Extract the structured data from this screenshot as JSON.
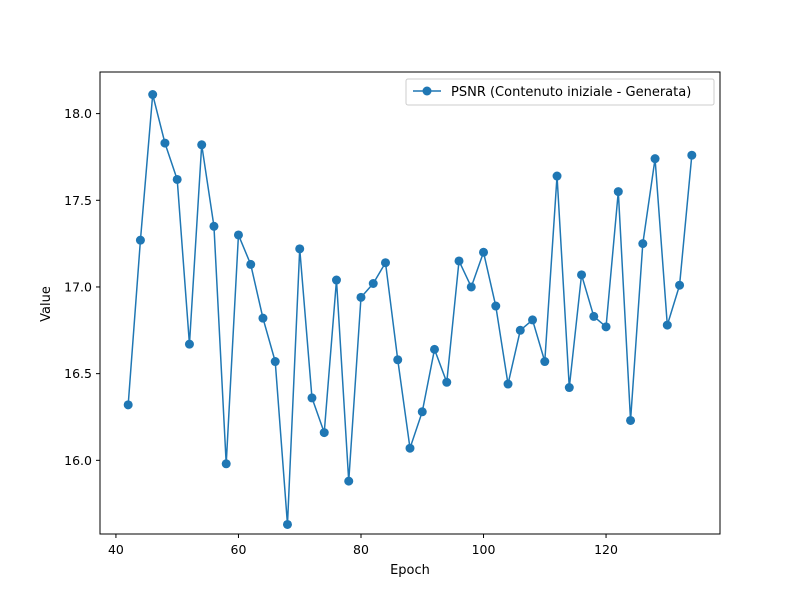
{
  "chart_data": {
    "type": "line",
    "xlabel": "Epoch",
    "ylabel": "Value",
    "xlim": [
      37.4,
      138.6
    ],
    "ylim": [
      15.575,
      18.24
    ],
    "xticks": [
      40,
      60,
      80,
      100,
      120
    ],
    "yticks": [
      16.0,
      16.5,
      17.0,
      17.5,
      18.0
    ],
    "xtick_labels": [
      "40",
      "60",
      "80",
      "100",
      "120"
    ],
    "ytick_labels": [
      "16.0",
      "16.5",
      "17.0",
      "17.5",
      "18.0"
    ],
    "grid": false,
    "legend": "top-right",
    "x": [
      42,
      44,
      46,
      48,
      50,
      52,
      54,
      56,
      58,
      60,
      62,
      64,
      66,
      68,
      70,
      72,
      74,
      76,
      78,
      80,
      82,
      84,
      86,
      88,
      90,
      92,
      94,
      96,
      98,
      100,
      102,
      104,
      106,
      108,
      110,
      112,
      114,
      116,
      118,
      120,
      122,
      124,
      126,
      128,
      130,
      132,
      134
    ],
    "series": [
      {
        "name": "PSNR (Contenuto iniziale - Generata)",
        "color": "#1f77b4",
        "marker": "circle",
        "values": [
          16.32,
          17.27,
          18.11,
          17.83,
          17.62,
          16.67,
          17.82,
          17.35,
          15.98,
          17.3,
          17.13,
          16.82,
          16.57,
          15.63,
          17.22,
          16.36,
          16.16,
          17.04,
          15.88,
          16.94,
          17.02,
          17.14,
          16.58,
          16.07,
          16.28,
          16.64,
          16.45,
          17.15,
          17.0,
          17.2,
          16.89,
          16.44,
          16.75,
          16.81,
          16.57,
          17.64,
          16.42,
          17.07,
          16.83,
          16.77,
          17.55,
          16.23,
          17.25,
          17.74,
          16.78,
          17.01,
          17.76
        ]
      }
    ]
  }
}
